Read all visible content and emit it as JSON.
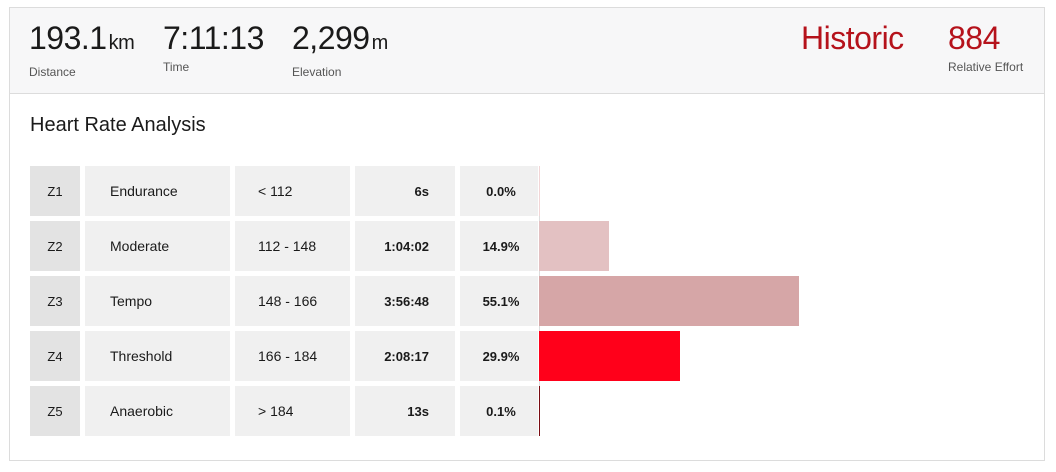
{
  "summary": {
    "distance": {
      "value": "193.1",
      "unit": "km",
      "label": "Distance"
    },
    "time": {
      "value": "7:11:13",
      "label": "Time"
    },
    "elevation": {
      "value": "2,299",
      "unit": "m",
      "label": "Elevation"
    },
    "historic": {
      "value": "Historic"
    },
    "relative_effort": {
      "value": "884",
      "label": "Relative Effort"
    }
  },
  "section_title": "Heart Rate Analysis",
  "zones": [
    {
      "id": "Z1",
      "name": "Endurance",
      "range": "< 112",
      "time": "6s",
      "pct": "0.0%",
      "fraction": 0.0,
      "color": "#f2d6d7"
    },
    {
      "id": "Z2",
      "name": "Moderate",
      "range": "112 - 148",
      "time": "1:04:02",
      "pct": "14.9%",
      "fraction": 0.149,
      "color": "#e3c1c2"
    },
    {
      "id": "Z3",
      "name": "Tempo",
      "range": "148 - 166",
      "time": "3:56:48",
      "pct": "55.1%",
      "fraction": 0.551,
      "color": "#d6a6a7"
    },
    {
      "id": "Z4",
      "name": "Threshold",
      "range": "166 - 184",
      "time": "2:08:17",
      "pct": "29.9%",
      "fraction": 0.299,
      "color": "#ff001a"
    },
    {
      "id": "Z5",
      "name": "Anaerobic",
      "range": "> 184",
      "time": "13s",
      "pct": "0.1%",
      "fraction": 0.001,
      "color": "#7a0b12"
    }
  ]
}
